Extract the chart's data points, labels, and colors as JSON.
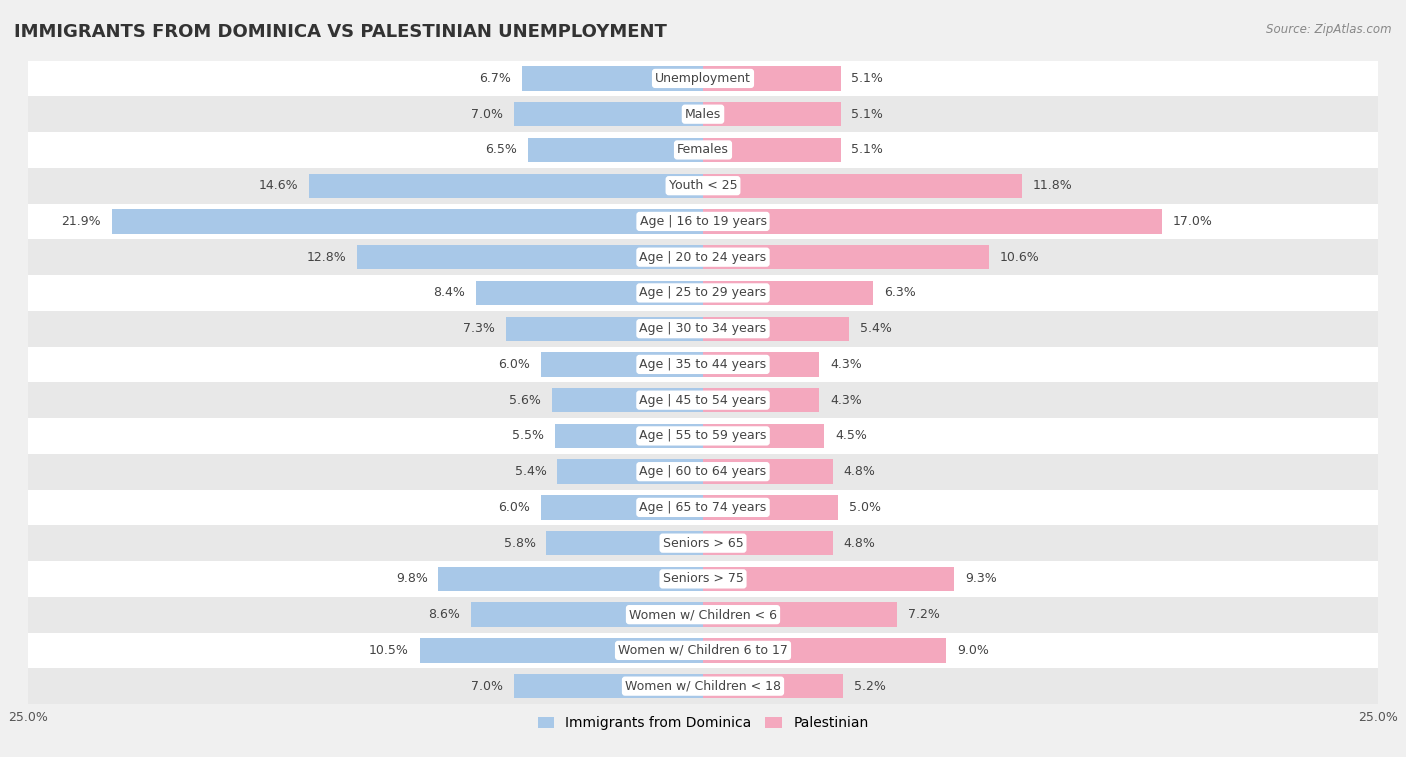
{
  "title": "IMMIGRANTS FROM DOMINICA VS PALESTINIAN UNEMPLOYMENT",
  "source": "Source: ZipAtlas.com",
  "categories": [
    "Unemployment",
    "Males",
    "Females",
    "Youth < 25",
    "Age | 16 to 19 years",
    "Age | 20 to 24 years",
    "Age | 25 to 29 years",
    "Age | 30 to 34 years",
    "Age | 35 to 44 years",
    "Age | 45 to 54 years",
    "Age | 55 to 59 years",
    "Age | 60 to 64 years",
    "Age | 65 to 74 years",
    "Seniors > 65",
    "Seniors > 75",
    "Women w/ Children < 6",
    "Women w/ Children 6 to 17",
    "Women w/ Children < 18"
  ],
  "dominica_values": [
    6.7,
    7.0,
    6.5,
    14.6,
    21.9,
    12.8,
    8.4,
    7.3,
    6.0,
    5.6,
    5.5,
    5.4,
    6.0,
    5.8,
    9.8,
    8.6,
    10.5,
    7.0
  ],
  "palestinian_values": [
    5.1,
    5.1,
    5.1,
    11.8,
    17.0,
    10.6,
    6.3,
    5.4,
    4.3,
    4.3,
    4.5,
    4.8,
    5.0,
    4.8,
    9.3,
    7.2,
    9.0,
    5.2
  ],
  "dominica_color": "#A8C8E8",
  "palestinian_color": "#F4A8BE",
  "xlim": 25.0,
  "background_color": "#f0f0f0",
  "row_color_even": "#ffffff",
  "row_color_odd": "#e8e8e8",
  "title_fontsize": 13,
  "label_fontsize": 9,
  "value_fontsize": 9,
  "legend_label_dominica": "Immigrants from Dominica",
  "legend_label_palestinian": "Palestinian"
}
